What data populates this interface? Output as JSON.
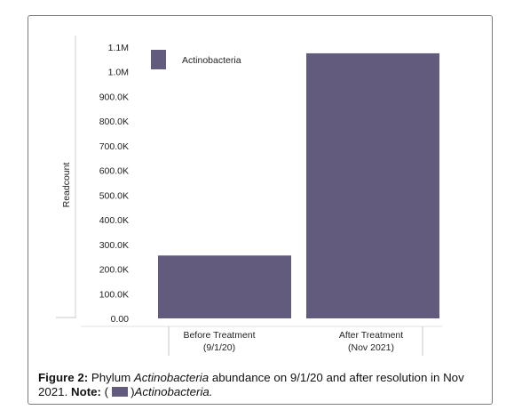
{
  "chart_data": {
    "type": "bar",
    "ylabel": "Readcount",
    "categories": [
      {
        "line1": "Before Treatment",
        "line2": "(9/1/20)"
      },
      {
        "line1": "After Treatment",
        "line2": "(Nov 2021)"
      }
    ],
    "series": [
      {
        "name": "Actinobacteria",
        "color": "#625b7d",
        "values": [
          255000,
          1075000
        ]
      }
    ],
    "yticks": [
      "0.00",
      "100.0K",
      "200.0K",
      "300.0K",
      "400.0K",
      "500.0K",
      "600.0K",
      "700.0K",
      "800.0K",
      "900.0K",
      "1.0M",
      "1.1M"
    ],
    "ytick_values": [
      0,
      100000,
      200000,
      300000,
      400000,
      500000,
      600000,
      700000,
      800000,
      900000,
      1000000,
      1100000
    ],
    "ylim": [
      0,
      1100000
    ],
    "legend": {
      "position": "top-left",
      "label": "Actinobacteria"
    }
  },
  "caption": {
    "figure_label": "Figure 2:",
    "text_part1": " Phylum ",
    "italic_term": "Actinobacteria",
    "text_part2": " abundance on 9/1/20 and after resolution in Nov 2021. ",
    "note_label": "Note:",
    "note_open": " (",
    "note_close": ")",
    "note_term": "Actinobacteria."
  }
}
